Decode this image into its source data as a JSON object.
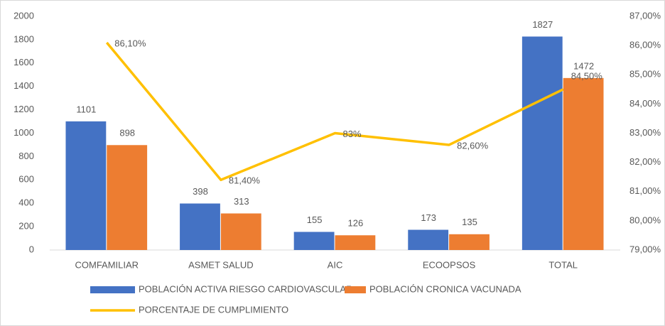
{
  "chart_data": {
    "type": "combo",
    "categories": [
      "COMFAMILIAR",
      "ASMET SALUD",
      "AIC",
      "ECOOPSOS",
      "TOTAL"
    ],
    "series": [
      {
        "name": "POBLACIÓN ACTIVA RIESGO CARDIOVASCULAR",
        "type": "bar",
        "color": "#4472c4",
        "values": [
          1101,
          398,
          155,
          173,
          1827
        ]
      },
      {
        "name": "POBLACIÓN CRONICA VACUNADA",
        "type": "bar",
        "color": "#ed7d31",
        "values": [
          898,
          313,
          126,
          135,
          1472
        ]
      },
      {
        "name": "PORCENTAJE DE CUMPLIMIENTO",
        "type": "line",
        "axis": "y2",
        "color": "#ffc000",
        "values": [
          86.1,
          81.4,
          83,
          82.6,
          84.5
        ],
        "value_labels": [
          "86,10%",
          "81,40%",
          "83%",
          "82,60%",
          "84,50%"
        ]
      }
    ],
    "ylim": [
      0,
      2000
    ],
    "yticks": [
      0,
      200,
      400,
      600,
      800,
      1000,
      1200,
      1400,
      1600,
      1800,
      2000
    ],
    "y2lim": [
      79,
      87
    ],
    "y2ticks": [
      {
        "value": 79,
        "label": "79,00%"
      },
      {
        "value": 80,
        "label": "80,00%"
      },
      {
        "value": 81,
        "label": "81,00%"
      },
      {
        "value": 82,
        "label": "82,00%"
      },
      {
        "value": 83,
        "label": "83,00%"
      },
      {
        "value": 84,
        "label": "84,00%"
      },
      {
        "value": 85,
        "label": "85,00%"
      },
      {
        "value": 86,
        "label": "86,00%"
      },
      {
        "value": 87,
        "label": "87,00%"
      }
    ],
    "grid": false,
    "legend": "bottom"
  }
}
